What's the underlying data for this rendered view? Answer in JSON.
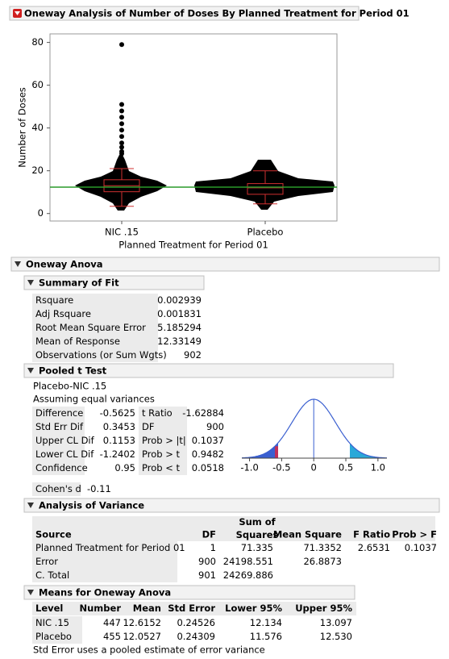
{
  "header": {
    "title": "Oneway Analysis of Number of Doses By Planned Treatment for Period 01"
  },
  "chart_data": {
    "type": "box",
    "categories": [
      "NIC .15",
      "Placebo"
    ],
    "xlabel": "Planned Treatment for Period 01",
    "ylabel": "Number of Doses",
    "ylim": [
      -3.5,
      84
    ],
    "yticks": [
      0,
      20,
      40,
      60,
      80
    ],
    "boxes": [
      {
        "whisker_low": 3.4,
        "q1": 10.2,
        "median": 13,
        "q3": 15.8,
        "whisker_high": 21,
        "outliers": [
          79,
          51,
          48,
          45,
          42,
          39,
          36,
          33,
          31,
          29,
          28,
          25,
          24
        ]
      },
      {
        "whisker_low": 4.5,
        "q1": 9,
        "median": 12,
        "q3": 14,
        "whisker_high": 20,
        "outliers": [
          24,
          23,
          22
        ]
      }
    ],
    "box_color": "#d03030",
    "mean_line": 12.33149,
    "mean_color": "#2a9a2a"
  },
  "oneway_anova": {
    "title": "Oneway Anova"
  },
  "summary_of_fit": {
    "title": "Summary of Fit",
    "rows": [
      [
        "Rsquare",
        "0.002939"
      ],
      [
        "Adj Rsquare",
        "0.001831"
      ],
      [
        "Root Mean Square Error",
        "5.185294"
      ],
      [
        "Mean of Response",
        "12.33149"
      ],
      [
        "Observations (or Sum Wgts)",
        "902"
      ]
    ]
  },
  "pooled_t_test": {
    "title": "Pooled t Test",
    "comparison": "Placebo-NIC .15",
    "assumption": "Assuming equal variances",
    "rows": [
      [
        "Difference",
        "-0.5625",
        "t Ratio",
        "-1.62884"
      ],
      [
        "Std Err Dif",
        "0.3453",
        "DF",
        "900"
      ],
      [
        "Upper CL Dif",
        "0.1153",
        "Prob > |t|",
        "0.1037"
      ],
      [
        "Lower CL Dif",
        "-1.2402",
        "Prob > t",
        "0.9482"
      ],
      [
        "Confidence",
        "0.95",
        "Prob < t",
        "0.0518"
      ]
    ],
    "plot": {
      "xlim": [
        -1.12,
        1.14
      ],
      "xticks": [
        {
          "value": -1,
          "label": "-1.0"
        },
        {
          "value": -0.5,
          "label": "-0.5"
        },
        0,
        {
          "value": 0.5,
          "label": "0.5"
        },
        {
          "value": 1,
          "label": "1.0"
        }
      ]
    },
    "cohens_d": {
      "label": "Cohen's d",
      "value": "-0.11"
    }
  },
  "analysis_of_variance": {
    "title": "Analysis of Variance",
    "columns": [
      "Source",
      "DF",
      "Sum of Squares",
      "Mean Square",
      "F Ratio",
      "Prob > F"
    ],
    "rows": [
      [
        "Planned Treatment for Period 01",
        "1",
        "71.335",
        "71.3352",
        "2.6531",
        "0.1037"
      ],
      [
        "Error",
        "900",
        "24198.551",
        "26.8873"
      ],
      [
        "C. Total",
        "901",
        "24269.886"
      ]
    ]
  },
  "means": {
    "title": "Means for Oneway Anova",
    "columns": [
      "Level",
      "Number",
      "Mean",
      "Std Error",
      "Lower 95%",
      "Upper 95%"
    ],
    "rows": [
      [
        "NIC .15",
        "447",
        "12.6152",
        "0.24526",
        "12.134",
        "13.097"
      ],
      [
        "Placebo",
        "455",
        "12.0527",
        "0.24309",
        "11.576",
        "12.530"
      ]
    ],
    "note": "Std Error uses a pooled estimate of error variance"
  }
}
